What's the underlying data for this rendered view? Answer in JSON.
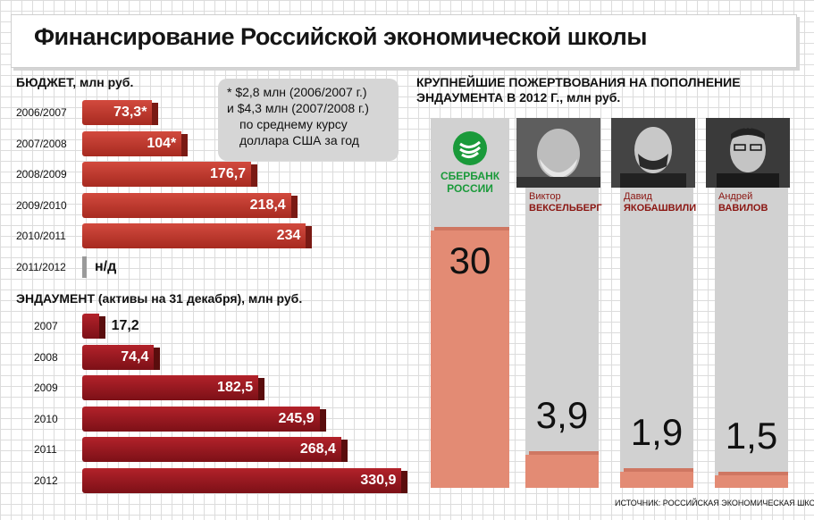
{
  "title": "Финансирование Российской экономической школы",
  "budget": {
    "label": "БЮДЖЕТ, млн руб.",
    "note_lines": [
      "* $2,8 млн (2006/2007 г.)",
      "и $4,3 млн (2007/2008 г.)",
      "по среднему курсу",
      "доллара США за год"
    ]
  },
  "endowment": {
    "label": "ЭНДАУМЕНТ (активы на 31 декабря), млн руб."
  },
  "donations": {
    "label_line1": "КРУПНЕЙШИЕ ПОЖЕРТВОВАНИЯ НА ПОПОЛНЕНИЕ",
    "label_line2": "ЭНДАУМЕНТА В 2012 Г., млн руб.",
    "sberbank_line1": "СБЕРБАНК",
    "sberbank_line2": "РОССИИ",
    "donors": [
      {
        "first": "Виктор",
        "last": "ВЕКСЕЛЬБЕРГ"
      },
      {
        "first": "Давид",
        "last": "ЯКОБАШВИЛИ"
      },
      {
        "first": "Андрей",
        "last": "ВАВИЛОВ"
      }
    ]
  },
  "source": "ИСТОЧНИК: РОССИЙСКАЯ ЭКОНОМИЧЕСКАЯ ШКОЛА",
  "colors": {
    "budget_bar": "#c23a30",
    "endowment_bar": "#9a1a20",
    "donation_bar": "#e38b74",
    "column_bg": "#d1d1d1"
  },
  "chart_data": [
    {
      "type": "bar",
      "orientation": "horizontal",
      "title": "БЮДЖЕТ, млн руб.",
      "categories": [
        "2006/2007",
        "2007/2008",
        "2008/2009",
        "2009/2010",
        "2010/2011",
        "2011/2012"
      ],
      "values": [
        73.3,
        104,
        176.7,
        218.4,
        234,
        null
      ],
      "value_labels": [
        "73,3*",
        "104*",
        "176,7",
        "218,4",
        "234",
        "н/д"
      ]
    },
    {
      "type": "bar",
      "orientation": "horizontal",
      "title": "ЭНДАУМЕНТ (активы на 31 декабря), млн руб.",
      "categories": [
        "2007",
        "2008",
        "2009",
        "2010",
        "2011",
        "2012"
      ],
      "values": [
        17.2,
        74.4,
        182.5,
        245.9,
        268.4,
        330.9
      ],
      "value_labels": [
        "17,2",
        "74,4",
        "182,5",
        "245,9",
        "268,4",
        "330,9"
      ]
    },
    {
      "type": "bar",
      "orientation": "vertical",
      "title": "КРУПНЕЙШИЕ ПОЖЕРТВОВАНИЯ НА ПОПОЛНЕНИЕ ЭНДАУМЕНТА В 2012 Г., млн руб.",
      "categories": [
        "СБЕРБАНК РОССИИ",
        "Виктор ВЕКСЕЛЬБЕРГ",
        "Давид ЯКОБАШВИЛИ",
        "Андрей ВАВИЛОВ"
      ],
      "values": [
        30,
        3.9,
        1.9,
        1.5
      ],
      "value_labels": [
        "30",
        "3,9",
        "1,9",
        "1,5"
      ]
    }
  ]
}
